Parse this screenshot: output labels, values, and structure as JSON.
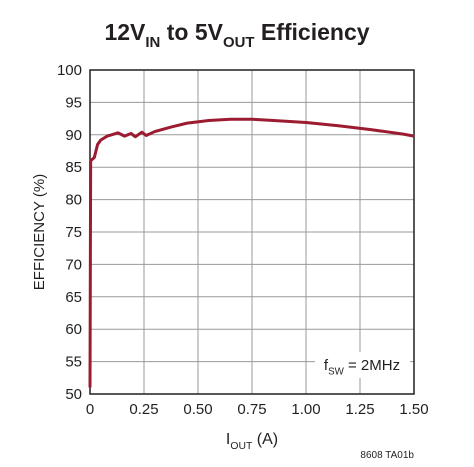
{
  "chart_data": {
    "type": "line",
    "title": [
      "12V",
      "IN",
      " to 5V",
      "OUT",
      " Efficiency"
    ],
    "x_label": [
      "I",
      "OUT",
      " (A)"
    ],
    "y_label": "EFFICIENCY (%)",
    "annotation": [
      "f",
      "SW",
      " = 2MHz"
    ],
    "footnote": "8608 TA01b",
    "x": [
      0,
      0.003,
      0.02,
      0.035,
      0.05,
      0.08,
      0.1,
      0.13,
      0.16,
      0.19,
      0.21,
      0.24,
      0.26,
      0.3,
      0.375,
      0.45,
      0.55,
      0.65,
      0.75,
      0.85,
      1.0,
      1.15,
      1.3,
      1.45,
      1.5
    ],
    "series": [
      {
        "name": "Efficiency",
        "color": "#9b1b30",
        "values": [
          51,
          86,
          86.5,
          88.5,
          89.2,
          89.8,
          90,
          90.3,
          89.8,
          90.2,
          89.7,
          90.4,
          89.9,
          90.5,
          91.2,
          91.8,
          92.2,
          92.4,
          92.4,
          92.2,
          91.9,
          91.4,
          90.8,
          90.1,
          89.8
        ]
      }
    ],
    "xlim": [
      0,
      1.5
    ],
    "xticks": [
      0,
      0.25,
      {
        "value": 0.5,
        "label": "0.50"
      },
      0.75,
      {
        "value": 1,
        "label": "1.00"
      },
      1.25,
      {
        "value": 1.5,
        "label": "1.50"
      }
    ],
    "ylim": [
      50,
      100
    ],
    "yticks": [
      50,
      55,
      60,
      65,
      70,
      75,
      80,
      85,
      90,
      95,
      100
    ],
    "grid": true
  }
}
